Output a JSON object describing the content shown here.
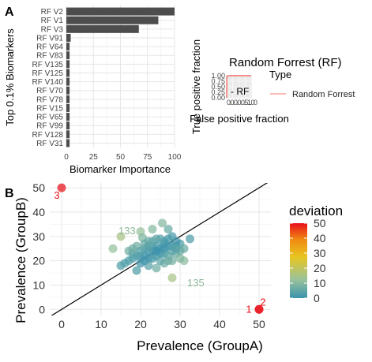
{
  "panels": {
    "a_label": "A",
    "b_label": "B"
  },
  "chart_data": [
    {
      "type": "bar",
      "orientation": "horizontal",
      "categories": [
        "RF V2",
        "RF V1",
        "RF V3",
        "RF V91",
        "RF V64",
        "RF V83",
        "RF V135",
        "RF V125",
        "RF V140",
        "RF V70",
        "RF V78",
        "RF V15",
        "RF V65",
        "RF V99",
        "RF V128",
        "RF V31"
      ],
      "values": [
        100,
        85,
        67,
        4,
        3,
        3,
        3,
        3,
        3,
        3,
        3,
        3,
        3,
        3,
        3,
        3
      ],
      "xlabel": "Biomarker Importance",
      "ylabel": "Top 0.1% Biomarkers",
      "xticks": [
        "0",
        "25",
        "50",
        "75",
        "100"
      ],
      "xlim": [
        0,
        100
      ],
      "bar_color": "#4d4d4d"
    },
    {
      "type": "line",
      "title": "Random Forrest (RF)",
      "xlabel": "False positive fraction",
      "ylabel": "True positive fraction",
      "yticks": [
        "1.00",
        "0.75",
        "0.50",
        "0.25",
        "0.00"
      ],
      "xticks_text": "0.0.0.0.0.51.00",
      "inline_label": "- RF",
      "legend": {
        "title": "Type",
        "entries": [
          "Random Forrest"
        ],
        "color": "#f8766d"
      }
    },
    {
      "type": "scatter",
      "xlabel": "Prevalence (GroupA)",
      "ylabel": "Prevalence (GroupB)",
      "xticks": [
        0,
        10,
        20,
        30,
        40,
        50
      ],
      "yticks": [
        0,
        10,
        20,
        30,
        40,
        50
      ],
      "xlim": [
        -3,
        53
      ],
      "ylim": [
        -2.5,
        52
      ],
      "reference_line": {
        "slope": 1,
        "intercept": 0
      },
      "colorbar": {
        "title": "deviation",
        "ticks": [
          0,
          10,
          20,
          30,
          40,
          50
        ],
        "colors": [
          "#3a92ad",
          "#9ac39b",
          "#e8c51f",
          "#f08a12",
          "#e8101a"
        ]
      },
      "annotations": [
        {
          "text": "3",
          "x": 0,
          "y": 50,
          "color": "#e8101a"
        },
        {
          "text": "1",
          "x": 50,
          "y": 0,
          "color": "#e8101a"
        },
        {
          "text": "2",
          "x": 50,
          "y": 0,
          "color": "#e8101a"
        },
        {
          "text": "133",
          "x": 15,
          "y": 30,
          "color": "#8fb99a"
        },
        {
          "text": "135",
          "x": 30,
          "y": 13,
          "color": "#8fb99a"
        }
      ],
      "points": [
        {
          "x": 0,
          "y": 50,
          "d": 50
        },
        {
          "x": 50,
          "y": 0,
          "d": 50
        },
        {
          "x": 50,
          "y": 0,
          "d": 50
        },
        {
          "x": 15,
          "y": 30,
          "d": 15
        },
        {
          "x": 28,
          "y": 13,
          "d": 15
        },
        {
          "x": 25.5,
          "y": 35.5,
          "d": 10
        },
        {
          "x": 23,
          "y": 33,
          "d": 10
        },
        {
          "x": 27,
          "y": 33,
          "d": 6
        },
        {
          "x": 20,
          "y": 32,
          "d": 12
        },
        {
          "x": 32.5,
          "y": 29,
          "d": 3
        },
        {
          "x": 13,
          "y": 25,
          "d": 12
        },
        {
          "x": 15,
          "y": 18,
          "d": 3
        },
        {
          "x": 19,
          "y": 16,
          "d": 3
        },
        {
          "x": 31,
          "y": 20,
          "d": 11
        },
        {
          "x": 20.5,
          "y": 29.5,
          "d": 9
        },
        {
          "x": 22,
          "y": 28,
          "d": 6
        },
        {
          "x": 24,
          "y": 29,
          "d": 5
        },
        {
          "x": 26,
          "y": 28,
          "d": 2
        },
        {
          "x": 28,
          "y": 30,
          "d": 2
        },
        {
          "x": 30,
          "y": 27,
          "d": 3
        },
        {
          "x": 29,
          "y": 23,
          "d": 6
        },
        {
          "x": 17,
          "y": 24,
          "d": 7
        },
        {
          "x": 18,
          "y": 21,
          "d": 3
        },
        {
          "x": 16,
          "y": 19,
          "d": 3
        },
        {
          "x": 20,
          "y": 22,
          "d": 2
        },
        {
          "x": 21,
          "y": 25,
          "d": 4
        },
        {
          "x": 22,
          "y": 21,
          "d": 1
        },
        {
          "x": 23,
          "y": 24,
          "d": 1
        },
        {
          "x": 24,
          "y": 22,
          "d": 2
        },
        {
          "x": 25,
          "y": 25,
          "d": 0
        },
        {
          "x": 26,
          "y": 23,
          "d": 3
        },
        {
          "x": 27,
          "y": 26,
          "d": 1
        },
        {
          "x": 28,
          "y": 24,
          "d": 4
        },
        {
          "x": 29,
          "y": 26,
          "d": 3
        },
        {
          "x": 30,
          "y": 24,
          "d": 6
        },
        {
          "x": 22,
          "y": 18,
          "d": 4
        },
        {
          "x": 24,
          "y": 17,
          "d": 7
        },
        {
          "x": 26,
          "y": 19,
          "d": 7
        },
        {
          "x": 28,
          "y": 20,
          "d": 8
        },
        {
          "x": 20,
          "y": 19,
          "d": 1
        },
        {
          "x": 25,
          "y": 20,
          "d": 5
        },
        {
          "x": 23,
          "y": 26,
          "d": 3
        },
        {
          "x": 21,
          "y": 27,
          "d": 6
        },
        {
          "x": 19,
          "y": 26,
          "d": 7
        },
        {
          "x": 18,
          "y": 23,
          "d": 5
        },
        {
          "x": 27,
          "y": 22,
          "d": 5
        },
        {
          "x": 24,
          "y": 26,
          "d": 2
        },
        {
          "x": 26,
          "y": 27,
          "d": 1
        },
        {
          "x": 22,
          "y": 24,
          "d": 2
        },
        {
          "x": 25,
          "y": 23,
          "d": 2
        },
        {
          "x": 23,
          "y": 21,
          "d": 2
        },
        {
          "x": 21,
          "y": 22,
          "d": 1
        },
        {
          "x": 29,
          "y": 28,
          "d": 1
        },
        {
          "x": 27,
          "y": 29,
          "d": 2
        },
        {
          "x": 31,
          "y": 25,
          "d": 6
        },
        {
          "x": 30,
          "y": 21,
          "d": 9
        },
        {
          "x": 17,
          "y": 20,
          "d": 3
        },
        {
          "x": 19,
          "y": 22,
          "d": 3
        },
        {
          "x": 22,
          "y": 26,
          "d": 4
        },
        {
          "x": 26,
          "y": 25,
          "d": 1
        },
        {
          "x": 24,
          "y": 24,
          "d": 0
        },
        {
          "x": 28,
          "y": 26,
          "d": 2
        },
        {
          "x": 23,
          "y": 28,
          "d": 5
        },
        {
          "x": 25,
          "y": 29,
          "d": 4
        },
        {
          "x": 21,
          "y": 20,
          "d": 1
        },
        {
          "x": 27,
          "y": 20,
          "d": 7
        },
        {
          "x": 20,
          "y": 24,
          "d": 4
        },
        {
          "x": 18,
          "y": 25,
          "d": 7
        },
        {
          "x": 29,
          "y": 25,
          "d": 4
        }
      ]
    }
  ]
}
